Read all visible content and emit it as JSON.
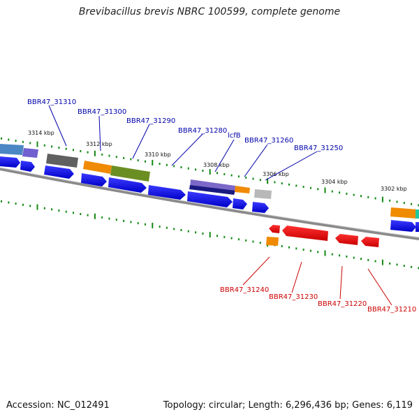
{
  "title": "Brevibacillus brevis NBRC 100599, complete genome",
  "footer": {
    "accession": "Accession: NC_012491",
    "summary": "Topology: circular; Length: 6,296,436 bp; Genes: 6,119"
  },
  "scale_labels": [
    "3314 kbp",
    "3312 kbp",
    "3310 kbp",
    "3308 kbp",
    "3306 kbp",
    "3304 kbp",
    "3302 kbp"
  ],
  "forward_gene_labels": [
    "BBR47_31310",
    "BBR47_31300",
    "BBR47_31290",
    "BBR47_31280",
    "lcfB",
    "BBR47_31260",
    "BBR47_31250"
  ],
  "reverse_gene_labels": [
    "BBR47_31240",
    "BBR47_31230",
    "BBR47_31220",
    "BBR47_31210"
  ],
  "colors": {
    "backbone": "#808080",
    "tick": "#118811",
    "cds": "#1414e6",
    "reverse_cds": "#e61414",
    "forward_label": "#0000aa",
    "reverse_label": "#cc0000"
  }
}
